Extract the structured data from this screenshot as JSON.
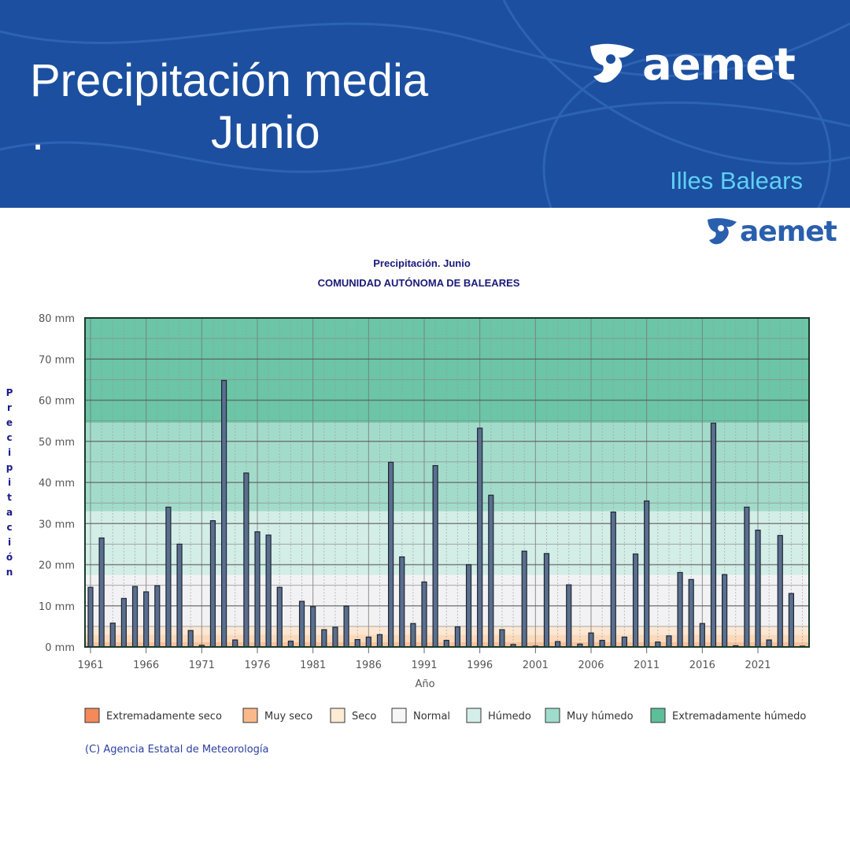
{
  "header": {
    "title": "Precipitación media",
    "subtitle": "Junio",
    "dot": ".",
    "region": "Illes Balears",
    "logo_text": "aemet"
  },
  "chart_logo_text": "aemet",
  "copyright": "(C) Agencia Estatal de Meteorología",
  "colors": {
    "header_bg": "#1c4f9f",
    "region_text": "#5fd0f5",
    "bar": "#5a6f8f"
  },
  "chart_data": {
    "type": "bar",
    "title": "Precipitación. Junio",
    "subtitle": "COMUNIDAD AUTÓNOMA DE BALEARES",
    "xlabel": "Año",
    "ylabel": "Precipitación",
    "ylim": [
      0,
      80
    ],
    "yticks": [
      "0 mm",
      "10 mm",
      "20 mm",
      "30 mm",
      "40 mm",
      "50 mm",
      "60 mm",
      "70 mm",
      "80 mm"
    ],
    "xticks": [
      "1961",
      "1966",
      "1971",
      "1976",
      "1981",
      "1986",
      "1991",
      "1996",
      "2001",
      "2006",
      "2011",
      "2016",
      "2021"
    ],
    "grid": true,
    "legend_placement": "bottom",
    "categories": [
      1961,
      1962,
      1963,
      1964,
      1965,
      1966,
      1967,
      1968,
      1969,
      1970,
      1971,
      1972,
      1973,
      1974,
      1975,
      1976,
      1977,
      1978,
      1979,
      1980,
      1981,
      1982,
      1983,
      1984,
      1985,
      1986,
      1987,
      1988,
      1989,
      1990,
      1991,
      1992,
      1993,
      1994,
      1995,
      1996,
      1997,
      1998,
      1999,
      2000,
      2001,
      2002,
      2003,
      2004,
      2005,
      2006,
      2007,
      2008,
      2009,
      2010,
      2011,
      2012,
      2013,
      2014,
      2015,
      2016,
      2017,
      2018,
      2019,
      2020,
      2021,
      2022,
      2023,
      2024,
      2025
    ],
    "values": [
      14.5,
      26.5,
      5.8,
      11.8,
      14.7,
      13.4,
      14.9,
      34.0,
      25.0,
      4.0,
      0.4,
      30.7,
      64.8,
      1.7,
      42.3,
      28.0,
      27.2,
      14.5,
      1.4,
      11.1,
      9.8,
      4.2,
      4.8,
      9.9,
      1.8,
      2.4,
      3.0,
      44.9,
      21.9,
      5.7,
      15.8,
      44.1,
      1.6,
      4.9,
      20.0,
      53.2,
      36.9,
      4.2,
      0.6,
      23.3,
      0.2,
      22.7,
      1.3,
      15.1,
      0.7,
      3.4,
      1.6,
      32.8,
      2.4,
      22.6,
      35.5,
      1.2,
      2.7,
      18.1,
      16.4,
      5.7,
      54.4,
      17.6,
      0.3,
      34.0,
      28.4,
      1.7,
      27.1,
      13.0,
      0.2
    ],
    "bands": [
      {
        "name": "Extremadamente seco",
        "from": 0,
        "to": 1.2,
        "color": "#f6c39e",
        "legend_color": "#f4895a"
      },
      {
        "name": "Muy seco",
        "from": 1.2,
        "to": 3,
        "color": "#fbd9bb",
        "legend_color": "#f9b98a"
      },
      {
        "name": "Seco",
        "from": 3,
        "to": 5,
        "color": "#fbe7d3",
        "legend_color": "#fdebd4"
      },
      {
        "name": "Normal",
        "from": 5,
        "to": 17.5,
        "color": "#f2f2f4",
        "legend_color": "#f6f6f6"
      },
      {
        "name": "Húmedo",
        "from": 17.5,
        "to": 33,
        "color": "#d3ede7",
        "legend_color": "#d4efe9"
      },
      {
        "name": "Muy húmedo",
        "from": 33,
        "to": 54.5,
        "color": "#a3dbca",
        "legend_color": "#9fdccb"
      },
      {
        "name": "Extremadamente húmedo",
        "from": 54.5,
        "to": 80,
        "color": "#6bc5a6",
        "legend_color": "#5dbf9a"
      }
    ]
  }
}
